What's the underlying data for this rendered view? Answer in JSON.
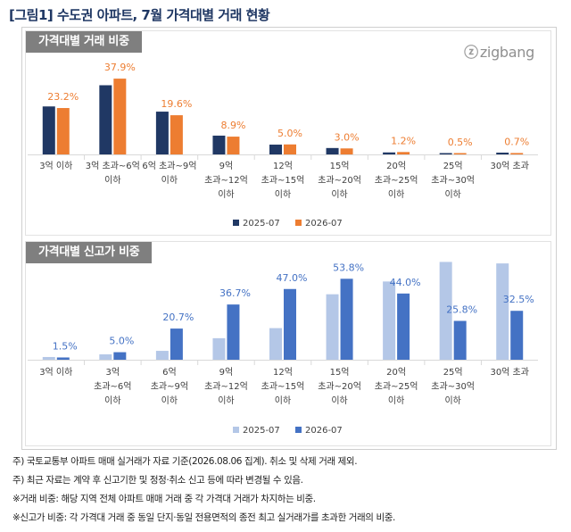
{
  "title": "[그림1] 수도권 아파트, 7월 가격대별 거래 현황",
  "brand": {
    "mark": "ⓩ",
    "name": "zigbang"
  },
  "colors": {
    "trade_2025": "#203864",
    "trade_2026": "#ed7d31",
    "record_2025": "#b4c7e7",
    "record_2026": "#4472c4",
    "label_trade": "#ed7d31",
    "label_record": "#4472c4",
    "panel_header": "#7f7f7f"
  },
  "chart_data": [
    {
      "type": "bar",
      "title": "가격대별 거래 비중",
      "categories": [
        [
          "3억 이하"
        ],
        [
          "3억 초과~6억",
          "이하"
        ],
        [
          "6억 초과~9억",
          "이하"
        ],
        [
          "9억",
          "초과~12억",
          "이하"
        ],
        [
          "12억",
          "초과~15억",
          "이하"
        ],
        [
          "15억",
          "초과~20억",
          "이하"
        ],
        [
          "20억",
          "초과~25억",
          "이하"
        ],
        [
          "25억",
          "초과~30억",
          "이하"
        ],
        [
          "30억 초과"
        ]
      ],
      "series": [
        {
          "name": "2025-07",
          "values": [
            24.0,
            34.6,
            21.4,
            9.4,
            4.9,
            3.2,
            1.0,
            0.4,
            0.9
          ]
        },
        {
          "name": "2026-07",
          "values": [
            23.2,
            37.9,
            19.6,
            8.9,
            5.0,
            3.0,
            1.2,
            0.5,
            0.7
          ]
        }
      ],
      "data_labels": [
        "23.2%",
        "37.9%",
        "19.6%",
        "8.9%",
        "5.0%",
        "3.0%",
        "1.2%",
        "0.5%",
        "0.7%"
      ],
      "ylim": [
        0,
        50
      ],
      "legend": "bottom",
      "grid": false
    },
    {
      "type": "bar",
      "title": "가격대별 신고가 비중",
      "categories": [
        [
          "3억 이하"
        ],
        [
          "3억",
          "초과~6억",
          "이하"
        ],
        [
          "6억",
          "초과~9억",
          "이하"
        ],
        [
          "9억",
          "초과~12억",
          "이하"
        ],
        [
          "12억",
          "초과~15억",
          "이하"
        ],
        [
          "15억",
          "초과~20억",
          "이하"
        ],
        [
          "20억",
          "초과~25억",
          "이하"
        ],
        [
          "25억",
          "초과~30억",
          "이하"
        ],
        [
          "30억 초과"
        ]
      ],
      "series": [
        {
          "name": "2025-07",
          "values": [
            1.8,
            3.6,
            5.9,
            14.3,
            21.0,
            43.5,
            52.0,
            65.0,
            64.0
          ]
        },
        {
          "name": "2026-07",
          "values": [
            1.5,
            5.0,
            20.7,
            36.7,
            47.0,
            53.8,
            44.0,
            25.8,
            32.5
          ]
        }
      ],
      "data_labels": [
        "1.5%",
        "5.0%",
        "20.7%",
        "36.7%",
        "47.0%",
        "53.8%",
        "44.0%",
        "25.8%",
        "32.5%"
      ],
      "ylim": [
        0,
        70
      ],
      "legend": "bottom",
      "grid": false
    }
  ],
  "notes": [
    "주) 국토교통부 아파트 매매 실거래가 자료 기준(2026.08.06 집계). 취소 및 삭제 거래 제외.",
    "주) 최근 자료는 계약 후 신고기한 및 정정·취소 신고 등에 따라 변경될 수 있음.",
    "※거래 비중: 해당 지역 전체 아파트 매매 거래 중 각 가격대 거래가 차지하는 비중.",
    "※신고가 비중: 각 가격대 거래 중 동일 단지·동일 전용면적의 종전 최고 실거래가를 초과한 거래의 비중."
  ]
}
